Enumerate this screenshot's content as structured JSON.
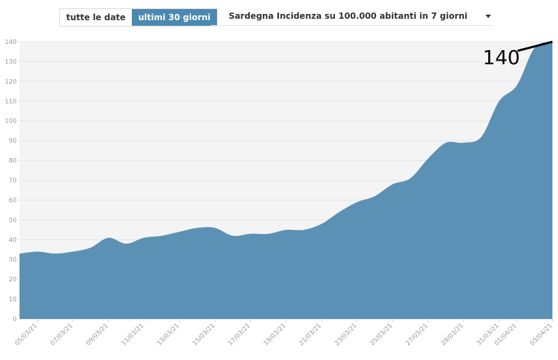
{
  "controls": {
    "range_toggle": [
      "tutte le date",
      "ultimi 30 giorni"
    ],
    "active_range": "ultimi 30 giorni",
    "metric_select": "Sardegna Incidenza su 100.000 abitanti in 7 giorni"
  },
  "chart_data": {
    "type": "area",
    "title": "",
    "xlabel": "",
    "ylabel": "",
    "x": [
      "04/03/21",
      "05/03/21",
      "06/03/21",
      "07/03/21",
      "08/03/21",
      "09/03/21",
      "10/03/21",
      "11/03/21",
      "12/03/21",
      "13/03/21",
      "14/03/21",
      "15/03/21",
      "16/03/21",
      "17/03/21",
      "18/03/21",
      "19/03/21",
      "20/03/21",
      "21/03/21",
      "22/03/21",
      "23/03/21",
      "24/03/21",
      "25/03/21",
      "26/03/21",
      "27/03/21",
      "28/03/21",
      "29/03/21",
      "30/03/21",
      "31/03/21",
      "01/04/21",
      "02/04/21",
      "03/04/21"
    ],
    "x_tick_labels": [
      "05/03/21",
      "07/03/21",
      "09/03/21",
      "11/03/21",
      "13/03/21",
      "15/03/21",
      "17/03/21",
      "19/03/21",
      "21/03/21",
      "23/03/21",
      "25/03/21",
      "27/03/21",
      "29/03/21",
      "31/03/21",
      "01/04/21",
      "03/04/21"
    ],
    "values": [
      33,
      34,
      33,
      34,
      36,
      41,
      38,
      41,
      42,
      44,
      46,
      46,
      42,
      43,
      43,
      45,
      45,
      48,
      54,
      59,
      62,
      68,
      71,
      81,
      89,
      89,
      92,
      110,
      118,
      137,
      140
    ],
    "ylim": [
      0,
      140
    ],
    "y_ticks": [
      0,
      10,
      20,
      30,
      40,
      50,
      60,
      70,
      80,
      90,
      100,
      110,
      120,
      130,
      140
    ],
    "grid": true,
    "fill_color": "#5b91b4",
    "plot_background": "#f4f4f4",
    "annotation": {
      "text": "140",
      "points_to": "03/04/21"
    }
  }
}
